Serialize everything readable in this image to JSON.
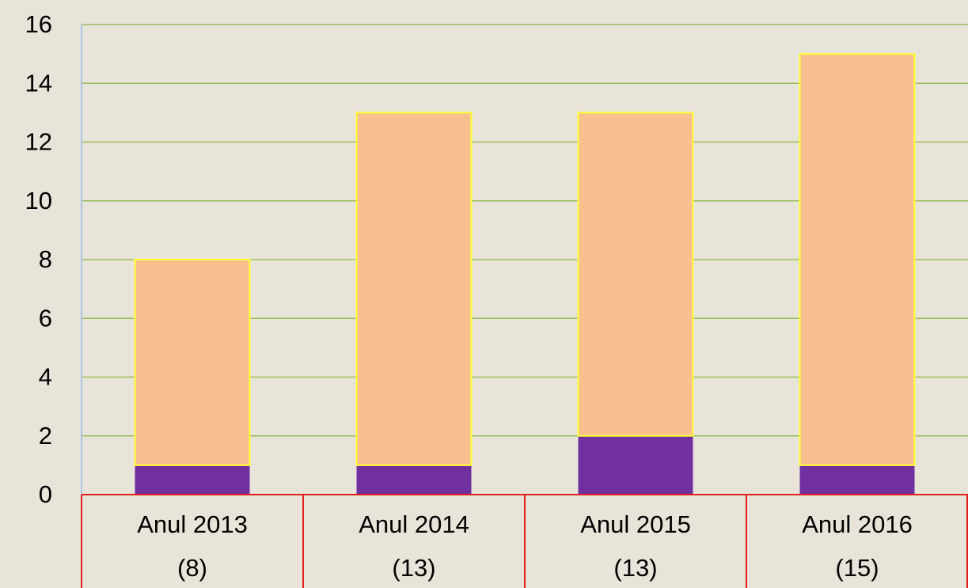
{
  "chart_data": {
    "type": "stacked_bar",
    "categories": [
      "Anul 2013 (8)",
      "Anul 2014 (13)",
      "Anul 2015 (13)",
      "Anul 2016 (15)"
    ],
    "series": [
      {
        "color": "#7030a0",
        "values": [
          1,
          1,
          2,
          1
        ]
      },
      {
        "color": "#f9c08f",
        "values": [
          7,
          12,
          11,
          14
        ]
      }
    ],
    "ylim": [
      0,
      16
    ],
    "yticks": [
      0,
      2,
      4,
      6,
      8,
      10,
      12,
      14,
      16
    ],
    "grid": true
  }
}
